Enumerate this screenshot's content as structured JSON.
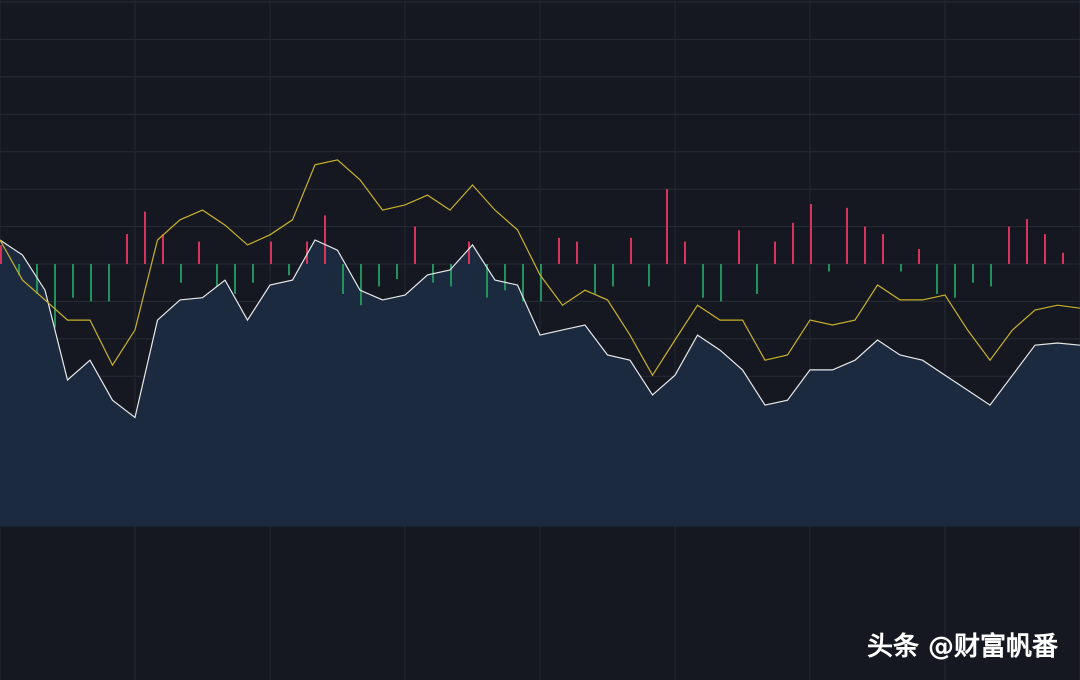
{
  "chart_data": [
    {
      "type": "line",
      "x": [
        0,
        5,
        10,
        15,
        20,
        25,
        30,
        35,
        40,
        45,
        50,
        55,
        60,
        65,
        70,
        75,
        80,
        85,
        90,
        95,
        100,
        105,
        110,
        115,
        120,
        125,
        130,
        135,
        140,
        145,
        150,
        155,
        160,
        165,
        170,
        175,
        180,
        185,
        190,
        195,
        200,
        205,
        210,
        215,
        220,
        225,
        230,
        235,
        240
      ],
      "xlim": [
        0,
        240
      ],
      "xticks": [
        0,
        30,
        60,
        90,
        120,
        150,
        180,
        210,
        240
      ],
      "ylim": [
        -7,
        7
      ],
      "yticks": [
        -7,
        -6,
        -5,
        -4,
        -3,
        -2,
        -1,
        0,
        1,
        2,
        3,
        4,
        5,
        6,
        7
      ],
      "grid": true,
      "series": [
        {
          "color": "#e8e8e8",
          "fill": "#1c2a3f",
          "values": [
            0.64,
            0.24,
            -0.7,
            -3.1,
            -2.57,
            -3.64,
            -4.1,
            -1.5,
            -0.96,
            -0.9,
            -0.43,
            -1.5,
            -0.56,
            -0.43,
            0.64,
            0.37,
            -0.7,
            -0.96,
            -0.83,
            -0.29,
            -0.16,
            0.51,
            -0.43,
            -0.56,
            -1.9,
            -1.76,
            -1.63,
            -2.43,
            -2.57,
            -3.5,
            -2.97,
            -1.9,
            -2.3,
            -2.83,
            -3.77,
            -3.64,
            -2.83,
            -2.83,
            -2.57,
            -2.03,
            -2.43,
            -2.57,
            -2.97,
            -3.37,
            -3.77,
            -2.97,
            -2.17,
            -2.11,
            -2.17
          ]
        },
        {
          "color": "#c9b02a",
          "values": [
            0.64,
            -0.43,
            -0.96,
            -1.5,
            -1.5,
            -2.7,
            -1.76,
            0.64,
            1.18,
            1.44,
            1.04,
            0.51,
            0.78,
            1.18,
            2.65,
            2.78,
            2.25,
            1.44,
            1.58,
            1.84,
            1.44,
            2.11,
            1.44,
            0.91,
            -0.29,
            -1.1,
            -0.7,
            -0.96,
            -1.9,
            -2.97,
            -2.03,
            -1.1,
            -1.5,
            -1.5,
            -2.57,
            -2.43,
            -1.5,
            -1.63,
            -1.5,
            -0.56,
            -0.96,
            -0.96,
            -0.83,
            -1.76,
            -2.57,
            -1.76,
            -1.23,
            -1.1,
            -1.18
          ]
        }
      ]
    },
    {
      "type": "bar",
      "x": [
        0,
        4,
        8,
        12,
        16,
        20,
        24,
        28,
        32,
        36,
        40,
        44,
        48,
        52,
        56,
        60,
        64,
        68,
        72,
        76,
        80,
        84,
        88,
        92,
        96,
        100,
        104,
        108,
        112,
        116,
        120,
        124,
        128,
        132,
        136,
        140,
        144,
        148,
        152,
        156,
        160,
        164,
        168,
        172,
        176,
        180,
        184,
        188,
        192,
        196,
        200,
        204,
        208,
        212,
        216,
        220,
        224,
        228,
        232,
        236,
        240
      ],
      "xlim": [
        0,
        240
      ],
      "ylim": [
        -7,
        7
      ],
      "up_color": "#d6345a",
      "down_color": "#22915c",
      "values": [
        0.5,
        -0.3,
        -0.8,
        -1.7,
        -0.9,
        -1.0,
        -1.0,
        0.8,
        1.4,
        0.8,
        -0.5,
        0.6,
        -0.6,
        -0.8,
        -0.5,
        0.6,
        -0.3,
        0.6,
        1.3,
        -0.8,
        -1.1,
        -0.6,
        -0.4,
        1.0,
        -0.5,
        -0.6,
        0.6,
        -0.9,
        -0.7,
        -1.0,
        -1.0,
        0.7,
        0.6,
        -0.8,
        -0.6,
        0.7,
        -0.6,
        2.0,
        0.6,
        -0.9,
        -1.0,
        0.9,
        -0.8,
        0.6,
        1.1,
        1.6,
        -0.2,
        1.5,
        1.0,
        0.8,
        -0.2,
        0.4,
        -0.8,
        -0.9,
        -0.5,
        -0.6,
        1.0,
        1.2,
        0.8,
        0.3,
        0.2
      ]
    }
  ],
  "watermark": "头条 @财富帆番"
}
